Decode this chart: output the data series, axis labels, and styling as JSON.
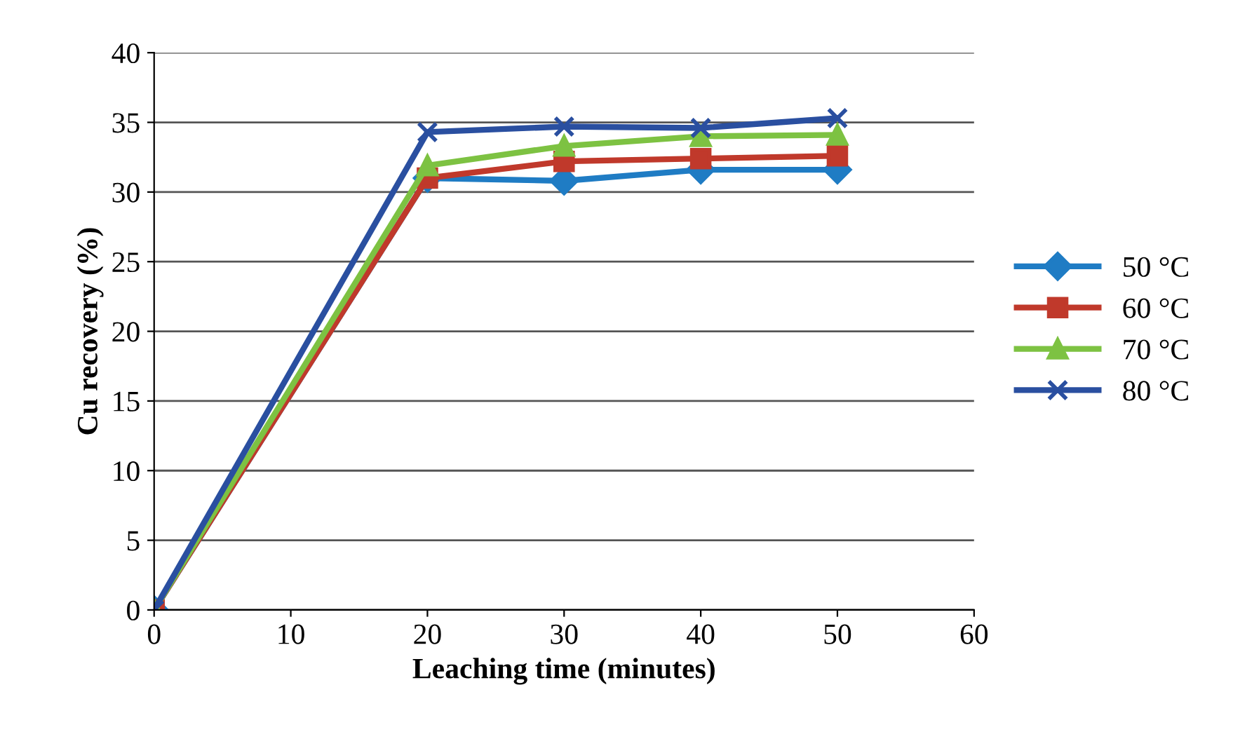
{
  "chart_data": {
    "type": "line",
    "xlabel": "Leaching time (minutes)",
    "ylabel": "Cu recovery (%)",
    "x": [
      0,
      20,
      30,
      40,
      50
    ],
    "series": [
      {
        "name": "50 °C",
        "color": "#1f7cc4",
        "marker": "diamond",
        "values": [
          0,
          31,
          30.8,
          31.6,
          31.6
        ]
      },
      {
        "name": "60 °C",
        "color": "#c0392b",
        "marker": "square",
        "values": [
          0,
          31,
          32.2,
          32.4,
          32.6
        ]
      },
      {
        "name": "70 °C",
        "color": "#7dc242",
        "marker": "triangle",
        "values": [
          0,
          31.9,
          33.3,
          34,
          34.1
        ]
      },
      {
        "name": "80 °C",
        "color": "#2a4fa0",
        "marker": "cross",
        "values": [
          0,
          34.3,
          34.7,
          34.6,
          35.3
        ]
      }
    ],
    "xlim": [
      0,
      60
    ],
    "xticks": [
      0,
      10,
      20,
      30,
      40,
      50,
      60
    ],
    "ylim": [
      0,
      40
    ],
    "yticks": [
      0,
      5,
      10,
      15,
      20,
      25,
      30,
      35,
      40
    ],
    "grid": "y",
    "legend": "right",
    "line_style": "solid"
  }
}
